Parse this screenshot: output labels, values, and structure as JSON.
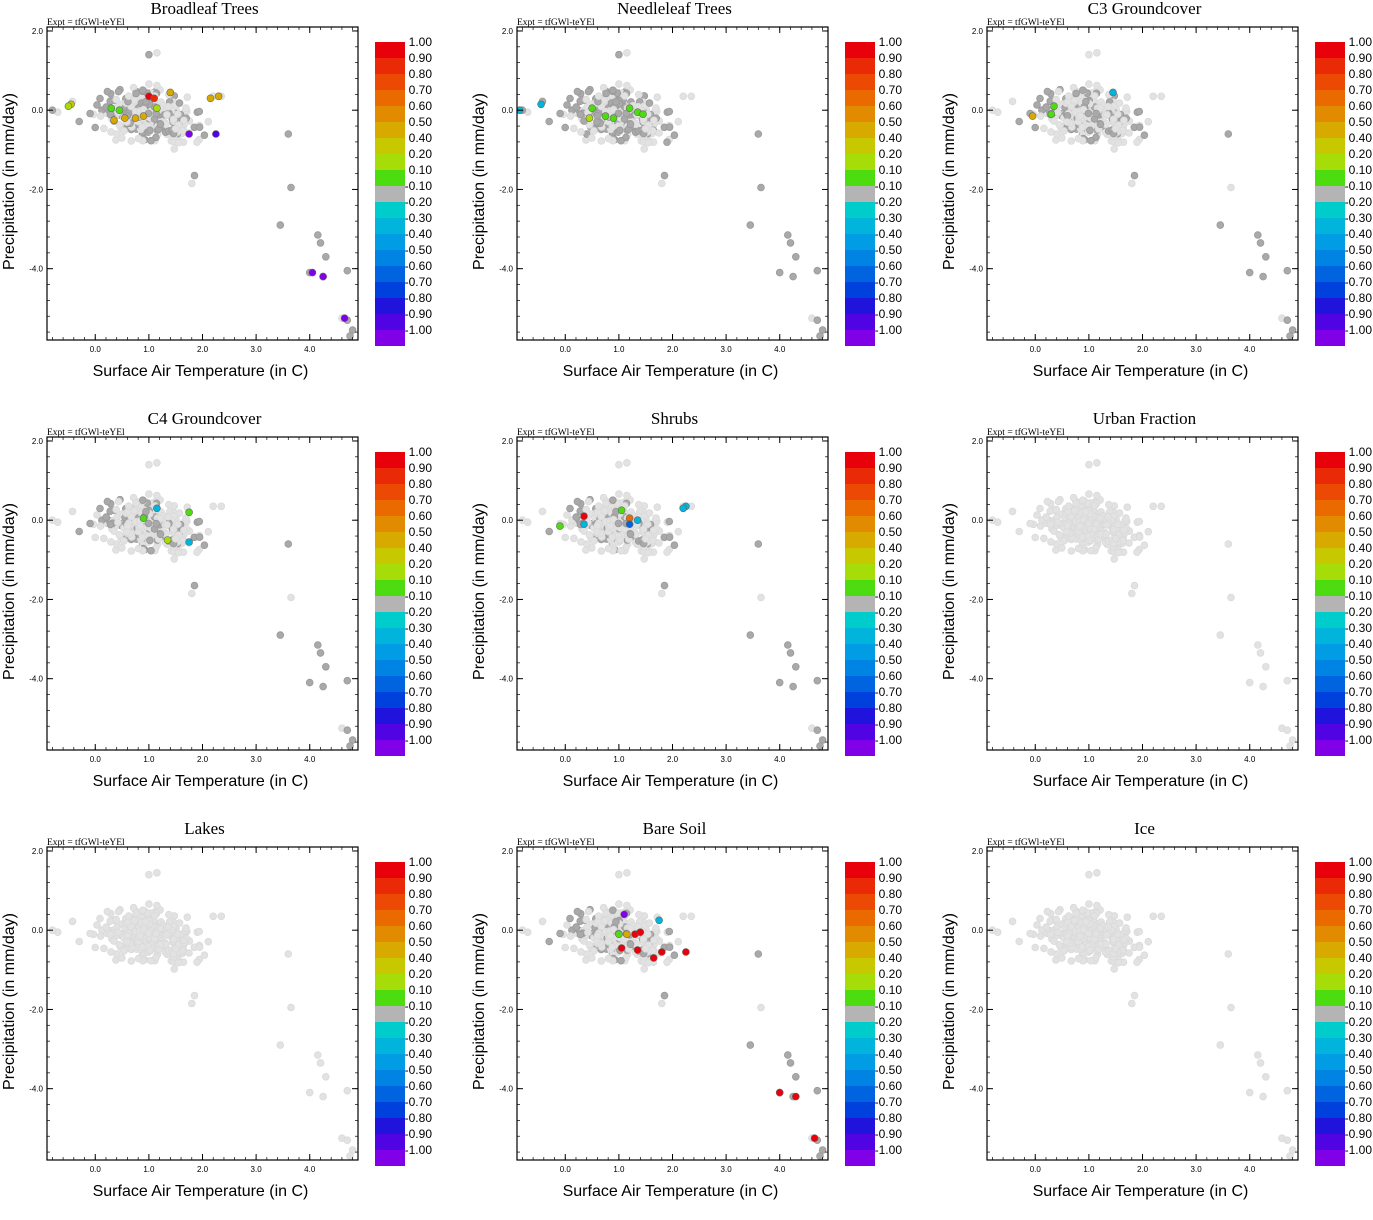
{
  "figure": {
    "expt_label": "Expt = tfGWl-teYEl",
    "xlabel": "Surface Air Temperature (in C)",
    "ylabel": "Precipitation (in mm/day)",
    "x_ticks": [
      "0.0",
      "1.0",
      "2.0",
      "3.0",
      "4.0"
    ],
    "y_ticks": [
      "2.0",
      "0.0",
      "-2.0",
      "-4.0"
    ],
    "colorbar": {
      "labels": [
        "1.00",
        "0.90",
        "0.80",
        "0.70",
        "0.60",
        "0.50",
        "0.40",
        "0.20",
        "0.10",
        "-0.10",
        "-0.20",
        "-0.30",
        "-0.40",
        "-0.50",
        "-0.60",
        "-0.70",
        "-0.80",
        "-0.90",
        "-1.00"
      ],
      "colors": [
        "#e8000b",
        "#ea2a06",
        "#ec4a04",
        "#ea6a00",
        "#e28a00",
        "#d8aa00",
        "#c8c800",
        "#a6dc08",
        "#4cdc10",
        "#b4b4b4",
        "#00cccc",
        "#00b4dc",
        "#009ce4",
        "#0084e4",
        "#0064e0",
        "#0040dc",
        "#2014dc",
        "#5004e4",
        "#8000e8"
      ]
    }
  },
  "chart_data": [
    {
      "type": "scatter",
      "title": "Broadleaf Trees",
      "xlabel": "Surface Air Temperature (in C)",
      "ylabel": "Precipitation (in mm/day)",
      "xlim": [
        -0.9,
        4.9
      ],
      "ylim": [
        -5.8,
        2.1
      ],
      "colorbar_range": [
        -1.0,
        1.0
      ],
      "points": [
        {
          "x": -0.45,
          "y": 0.15,
          "c": 0.25
        },
        {
          "x": -0.5,
          "y": 0.1,
          "c": 0.2
        },
        {
          "x": 0.3,
          "y": 0.05,
          "c": 0.1
        },
        {
          "x": 0.45,
          "y": 0.0,
          "c": 0.1
        },
        {
          "x": 0.35,
          "y": -0.25,
          "c": 0.5
        },
        {
          "x": 0.55,
          "y": -0.2,
          "c": 0.5
        },
        {
          "x": 0.75,
          "y": -0.2,
          "c": 0.5
        },
        {
          "x": 0.9,
          "y": -0.15,
          "c": 0.5
        },
        {
          "x": 1.0,
          "y": 0.35,
          "c": 0.9
        },
        {
          "x": 1.1,
          "y": 0.3,
          "c": 0.85
        },
        {
          "x": 1.15,
          "y": 0.05,
          "c": 0.15
        },
        {
          "x": 1.4,
          "y": 0.45,
          "c": 0.4
        },
        {
          "x": 2.15,
          "y": 0.3,
          "c": 0.4
        },
        {
          "x": 2.3,
          "y": 0.35,
          "c": 0.5
        },
        {
          "x": 1.75,
          "y": -0.6,
          "c": -0.9
        },
        {
          "x": 2.25,
          "y": -0.6,
          "c": -0.8
        },
        {
          "x": 4.05,
          "y": -4.1,
          "c": -0.95
        },
        {
          "x": 4.25,
          "y": -4.2,
          "c": -0.95
        },
        {
          "x": 4.65,
          "y": -5.25,
          "c": -0.9
        }
      ]
    },
    {
      "type": "scatter",
      "title": "Needleleaf Trees",
      "xlabel": "Surface Air Temperature (in C)",
      "ylabel": "Precipitation (in mm/day)",
      "xlim": [
        -0.9,
        4.9
      ],
      "ylim": [
        -5.8,
        2.1
      ],
      "colorbar_range": [
        -1.0,
        1.0
      ],
      "points": [
        {
          "x": -0.45,
          "y": 0.15,
          "c": -0.3
        },
        {
          "x": -0.85,
          "y": 0.0,
          "c": -0.2
        },
        {
          "x": 0.45,
          "y": -0.2,
          "c": 0.15
        },
        {
          "x": 0.5,
          "y": 0.05,
          "c": 0.12
        },
        {
          "x": 0.75,
          "y": -0.15,
          "c": 0.12
        },
        {
          "x": 0.9,
          "y": -0.2,
          "c": 0.12
        },
        {
          "x": 1.2,
          "y": 0.05,
          "c": 0.12
        },
        {
          "x": 1.35,
          "y": -0.05,
          "c": 0.12
        },
        {
          "x": 1.45,
          "y": -0.1,
          "c": 0.12
        }
      ]
    },
    {
      "type": "scatter",
      "title": "C3 Groundcover",
      "xlabel": "Surface Air Temperature (in C)",
      "ylabel": "Precipitation (in mm/day)",
      "xlim": [
        -0.9,
        4.9
      ],
      "ylim": [
        -5.8,
        2.1
      ],
      "colorbar_range": [
        -1.0,
        1.0
      ],
      "points": [
        {
          "x": -0.05,
          "y": -0.15,
          "c": 0.45
        },
        {
          "x": 0.3,
          "y": -0.1,
          "c": 0.12
        },
        {
          "x": 0.35,
          "y": 0.1,
          "c": 0.12
        },
        {
          "x": 1.45,
          "y": 0.45,
          "c": -0.2
        }
      ]
    },
    {
      "type": "scatter",
      "title": "C4 Groundcover",
      "xlabel": "Surface Air Temperature (in C)",
      "ylabel": "Precipitation (in mm/day)",
      "xlim": [
        -0.9,
        4.9
      ],
      "ylim": [
        -5.8,
        2.1
      ],
      "colorbar_range": [
        -1.0,
        1.0
      ],
      "points": [
        {
          "x": 0.9,
          "y": 0.05,
          "c": 0.12
        },
        {
          "x": 1.15,
          "y": 0.3,
          "c": -0.25
        },
        {
          "x": 1.35,
          "y": -0.5,
          "c": 0.15
        },
        {
          "x": 1.75,
          "y": 0.2,
          "c": 0.12
        },
        {
          "x": 1.75,
          "y": -0.55,
          "c": -0.2
        }
      ]
    },
    {
      "type": "scatter",
      "title": "Shrubs",
      "xlabel": "Surface Air Temperature (in C)",
      "ylabel": "Precipitation (in mm/day)",
      "xlim": [
        -0.9,
        4.9
      ],
      "ylim": [
        -5.8,
        2.1
      ],
      "colorbar_range": [
        -1.0,
        1.0
      ],
      "points": [
        {
          "x": -0.1,
          "y": -0.15,
          "c": 0.12
        },
        {
          "x": 0.35,
          "y": 0.1,
          "c": 0.9
        },
        {
          "x": 0.35,
          "y": -0.1,
          "c": -0.25
        },
        {
          "x": 1.05,
          "y": 0.25,
          "c": 0.12
        },
        {
          "x": 1.2,
          "y": 0.05,
          "c": 0.65
        },
        {
          "x": 1.35,
          "y": 0.0,
          "c": -0.2
        },
        {
          "x": 1.2,
          "y": -0.1,
          "c": -0.6
        },
        {
          "x": 2.25,
          "y": 0.35,
          "c": -0.2
        },
        {
          "x": 2.2,
          "y": 0.3,
          "c": -0.25
        }
      ]
    },
    {
      "type": "scatter",
      "title": "Urban Fraction",
      "xlabel": "Surface Air Temperature (in C)",
      "ylabel": "Precipitation (in mm/day)",
      "xlim": [
        -0.9,
        4.9
      ],
      "ylim": [
        -5.8,
        2.1
      ],
      "colorbar_range": [
        -1.0,
        1.0
      ],
      "points": []
    },
    {
      "type": "scatter",
      "title": "Lakes",
      "xlabel": "Surface Air Temperature (in C)",
      "ylabel": "Precipitation (in mm/day)",
      "xlim": [
        -0.9,
        4.9
      ],
      "ylim": [
        -5.8,
        2.1
      ],
      "colorbar_range": [
        -1.0,
        1.0
      ],
      "points": []
    },
    {
      "type": "scatter",
      "title": "Bare Soil",
      "xlabel": "Surface Air Temperature (in C)",
      "ylabel": "Precipitation (in mm/day)",
      "xlim": [
        -0.9,
        4.9
      ],
      "ylim": [
        -5.8,
        2.1
      ],
      "colorbar_range": [
        -1.0,
        1.0
      ],
      "points": [
        {
          "x": 1.0,
          "y": -0.1,
          "c": 0.12
        },
        {
          "x": 1.15,
          "y": -0.1,
          "c": 0.45
        },
        {
          "x": 1.3,
          "y": -0.1,
          "c": 0.95
        },
        {
          "x": 1.4,
          "y": -0.05,
          "c": 0.95
        },
        {
          "x": 1.05,
          "y": -0.45,
          "c": 0.95
        },
        {
          "x": 1.35,
          "y": -0.5,
          "c": 0.9
        },
        {
          "x": 1.65,
          "y": -0.7,
          "c": 0.95
        },
        {
          "x": 1.8,
          "y": -0.55,
          "c": 0.95
        },
        {
          "x": 1.75,
          "y": 0.25,
          "c": -0.2
        },
        {
          "x": 1.1,
          "y": 0.4,
          "c": -0.9
        },
        {
          "x": 2.25,
          "y": -0.55,
          "c": 0.95
        },
        {
          "x": 4.0,
          "y": -4.1,
          "c": 0.95
        },
        {
          "x": 4.3,
          "y": -4.2,
          "c": 0.95
        },
        {
          "x": 4.65,
          "y": -5.25,
          "c": 0.9
        }
      ]
    },
    {
      "type": "scatter",
      "title": "Ice",
      "xlabel": "Surface Air Temperature (in C)",
      "ylabel": "Precipitation (in mm/day)",
      "xlim": [
        -0.9,
        4.9
      ],
      "ylim": [
        -5.8,
        2.1
      ],
      "colorbar_range": [
        -1.0,
        1.0
      ],
      "points": []
    }
  ],
  "background_points": {
    "note": "grey cloud of remaining grid cells; shade = dark where the land type is present in the cell",
    "cluster": {
      "x_center": 1.0,
      "x_spread": 0.75,
      "y_center": -0.1,
      "y_spread": 0.45,
      "count": 320
    },
    "outliers": [
      {
        "x": 3.6,
        "y": -0.6
      },
      {
        "x": 3.65,
        "y": -1.95
      },
      {
        "x": 3.45,
        "y": -2.9
      },
      {
        "x": 4.15,
        "y": -3.15
      },
      {
        "x": 4.2,
        "y": -3.35
      },
      {
        "x": 4.3,
        "y": -3.7
      },
      {
        "x": 4.0,
        "y": -4.1
      },
      {
        "x": 4.25,
        "y": -4.2
      },
      {
        "x": 4.7,
        "y": -4.05
      },
      {
        "x": 4.6,
        "y": -5.25
      },
      {
        "x": 4.7,
        "y": -5.3
      },
      {
        "x": 4.8,
        "y": -5.55
      },
      {
        "x": 4.75,
        "y": -5.7
      },
      {
        "x": 1.8,
        "y": -1.85
      },
      {
        "x": 1.85,
        "y": -1.65
      },
      {
        "x": 1.0,
        "y": 1.4
      },
      {
        "x": 1.15,
        "y": 1.45
      },
      {
        "x": 2.2,
        "y": 0.35
      },
      {
        "x": 2.35,
        "y": 0.35
      },
      {
        "x": -0.7,
        "y": -0.05
      },
      {
        "x": -0.8,
        "y": 0.0
      }
    ],
    "dark_share": [
      0.45,
      0.5,
      0.35,
      0.3,
      0.25,
      0.0,
      0.0,
      0.28,
      0.0
    ]
  }
}
